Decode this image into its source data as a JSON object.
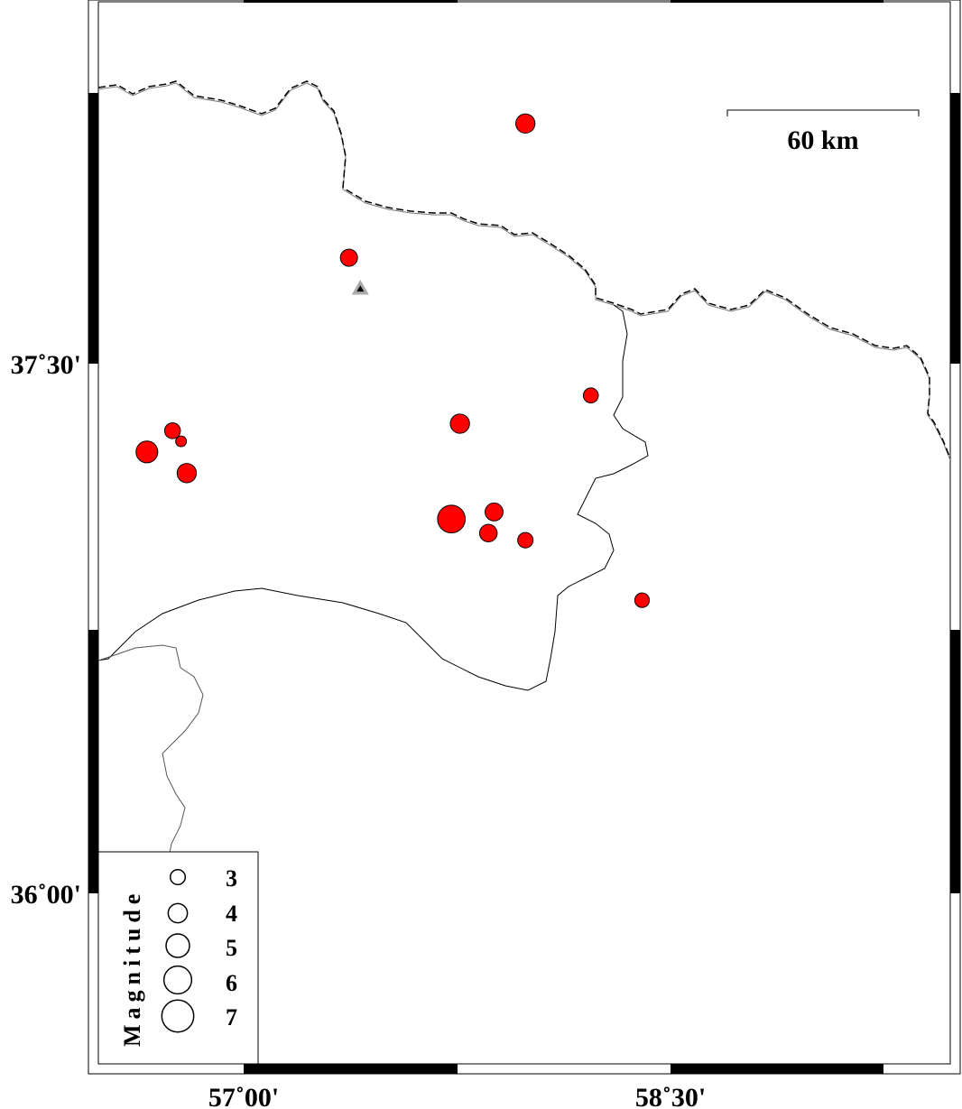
{
  "map": {
    "lon_labels": [
      {
        "lon": 57.0,
        "text": "57˚00'"
      },
      {
        "lon": 58.5,
        "text": "58˚30'"
      }
    ],
    "lat_labels": [
      {
        "lat": 37.5,
        "text": "37˚30'"
      },
      {
        "lat": 36.0,
        "text": "36˚00'"
      }
    ],
    "scale_bar": {
      "label": "60 km"
    },
    "colors": {
      "event_fill": "#ff0000",
      "station_outer": "#aaaaaa",
      "station_inner": "#000000",
      "border_gray": "#777777"
    },
    "station": {
      "lon": 57.41,
      "lat": 37.71,
      "icon": "triangle-icon"
    },
    "events": [
      {
        "lon": 57.99,
        "lat": 38.18,
        "mag": 4.0
      },
      {
        "lon": 57.37,
        "lat": 37.8,
        "mag": 3.5
      },
      {
        "lon": 58.22,
        "lat": 37.41,
        "mag": 3.0
      },
      {
        "lon": 57.76,
        "lat": 37.33,
        "mag": 4.0
      },
      {
        "lon": 56.75,
        "lat": 37.31,
        "mag": 3.2
      },
      {
        "lon": 56.78,
        "lat": 37.28,
        "mag": 2.0
      },
      {
        "lon": 56.66,
        "lat": 37.25,
        "mag": 4.6
      },
      {
        "lon": 56.8,
        "lat": 37.19,
        "mag": 4.0
      },
      {
        "lon": 57.73,
        "lat": 37.06,
        "mag": 6.0
      },
      {
        "lon": 57.88,
        "lat": 37.08,
        "mag": 3.7
      },
      {
        "lon": 57.86,
        "lat": 37.02,
        "mag": 3.6
      },
      {
        "lon": 57.99,
        "lat": 37.0,
        "mag": 3.1
      },
      {
        "lon": 58.4,
        "lat": 36.83,
        "mag": 2.9
      }
    ]
  },
  "legend": {
    "title": "Magnitude",
    "entries": [
      {
        "mag": 3,
        "label": "3"
      },
      {
        "mag": 4,
        "label": "4"
      },
      {
        "mag": 5,
        "label": "5"
      },
      {
        "mag": 6,
        "label": "6"
      },
      {
        "mag": 7,
        "label": "7"
      }
    ]
  }
}
